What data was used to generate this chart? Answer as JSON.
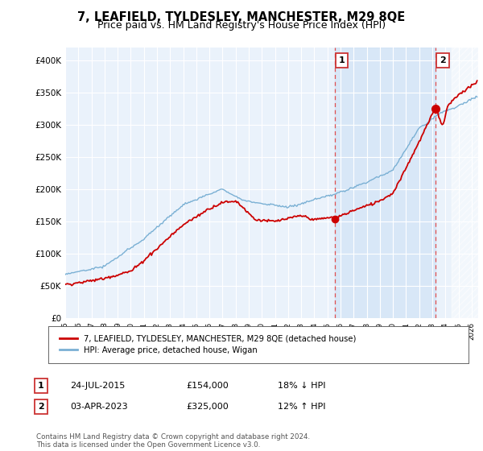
{
  "title": "7, LEAFIELD, TYLDESLEY, MANCHESTER, M29 8QE",
  "subtitle": "Price paid vs. HM Land Registry's House Price Index (HPI)",
  "title_fontsize": 10.5,
  "subtitle_fontsize": 9,
  "background_color": "#ffffff",
  "plot_bg_color": "#dce8f5",
  "plot_bg_color2": "#eaf2fb",
  "grid_color": "#ffffff",
  "hatch_color": "#c0c0c0",
  "ylim": [
    0,
    420000
  ],
  "yticks": [
    0,
    50000,
    100000,
    150000,
    200000,
    250000,
    300000,
    350000,
    400000
  ],
  "ytick_labels": [
    "£0",
    "£50K",
    "£100K",
    "£150K",
    "£200K",
    "£250K",
    "£300K",
    "£350K",
    "£400K"
  ],
  "xlim_start": 1995,
  "xlim_end": 2026.5,
  "house_color": "#cc0000",
  "hpi_color": "#7ab0d4",
  "marker1_x": 2015.56,
  "marker1_y": 154000,
  "marker2_x": 2023.25,
  "marker2_y": 325000,
  "highlight_color": "#cce0f5",
  "future_start": 2024.5,
  "legend_house_label": "7, LEAFIELD, TYLDESLEY, MANCHESTER, M29 8QE (detached house)",
  "legend_hpi_label": "HPI: Average price, detached house, Wigan",
  "note1_label": "1",
  "note1_date": "24-JUL-2015",
  "note1_price": "£154,000",
  "note1_change": "18% ↓ HPI",
  "note2_label": "2",
  "note2_date": "03-APR-2023",
  "note2_price": "£325,000",
  "note2_change": "12% ↑ HPI",
  "footer": "Contains HM Land Registry data © Crown copyright and database right 2024.\nThis data is licensed under the Open Government Licence v3.0."
}
